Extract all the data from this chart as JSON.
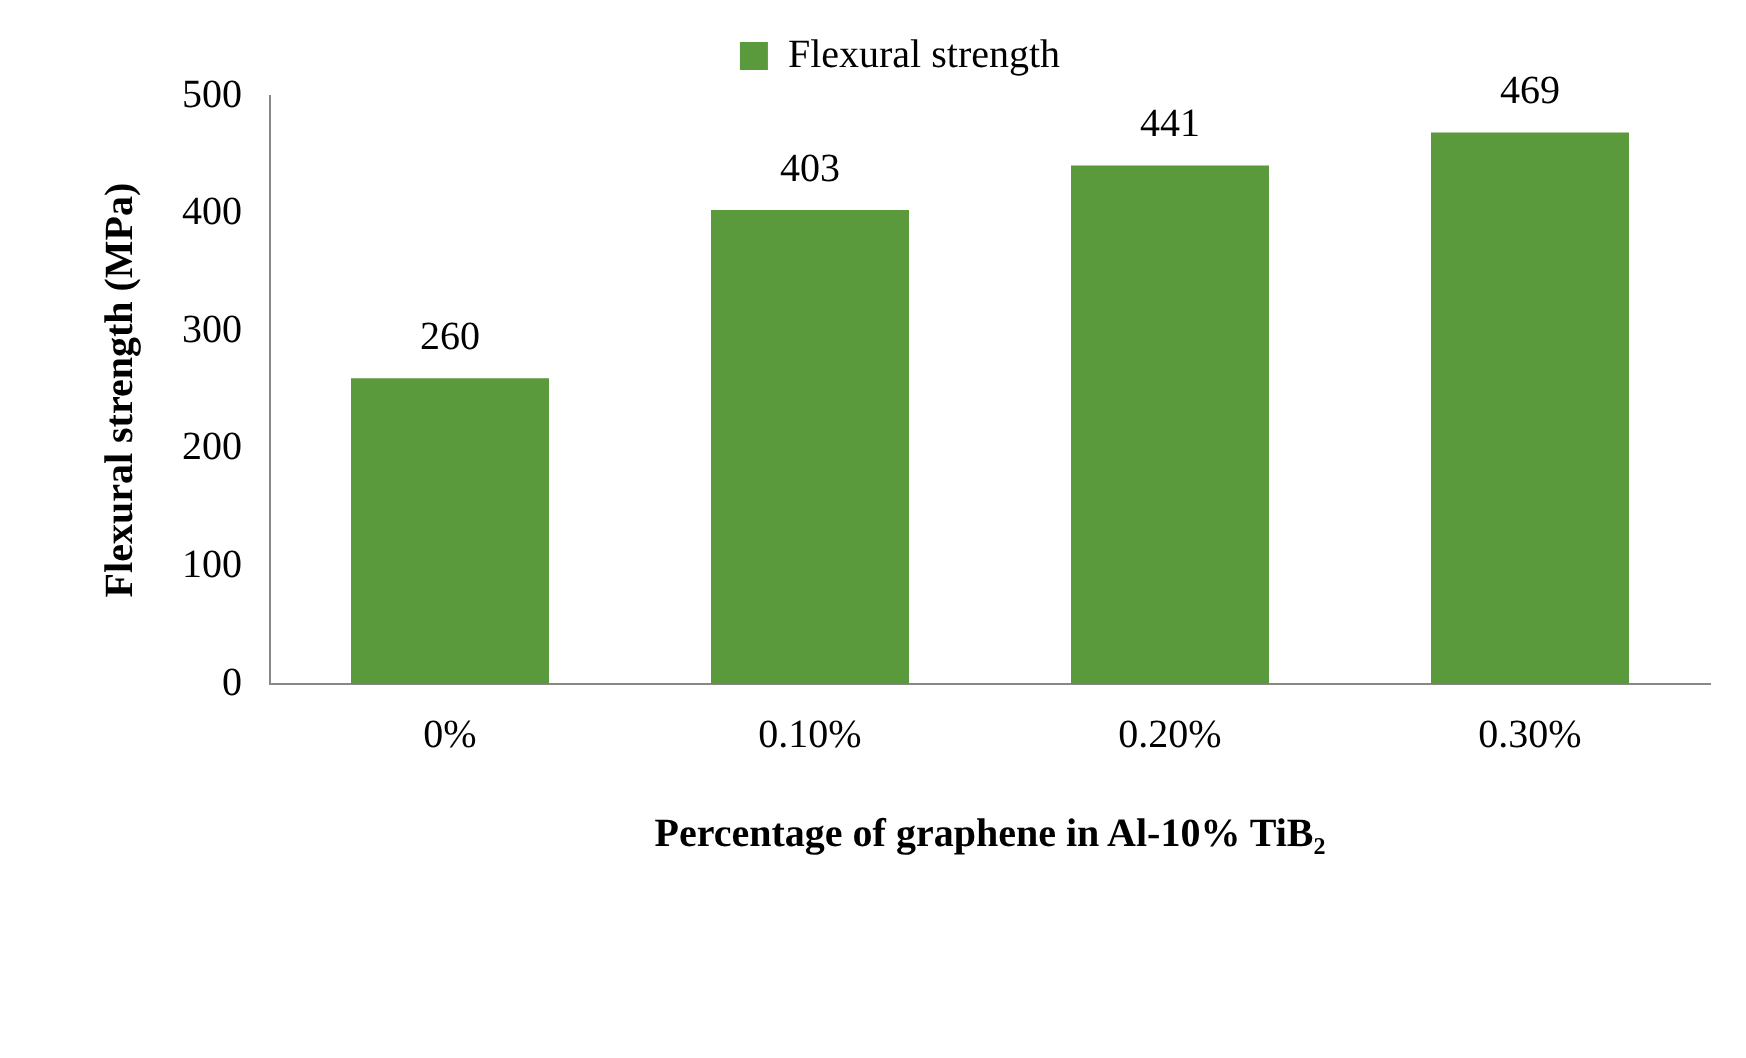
{
  "chart_data": {
    "type": "bar",
    "xlabel": "Percentage of graphene in Al-10% TiB₂",
    "ylabel": "Flexural strength (MPa)",
    "categories": [
      "0%",
      "0.10%",
      "0.20%",
      "0.30%"
    ],
    "series": [
      {
        "name": "Flexural strength",
        "color": "#5a9a3c",
        "values": [
          260,
          403,
          441,
          469
        ]
      }
    ],
    "ylim": [
      0,
      500
    ],
    "yticks": [
      0,
      100,
      200,
      300,
      400,
      500
    ],
    "grid": false,
    "legend": "top",
    "data_labels": true
  }
}
